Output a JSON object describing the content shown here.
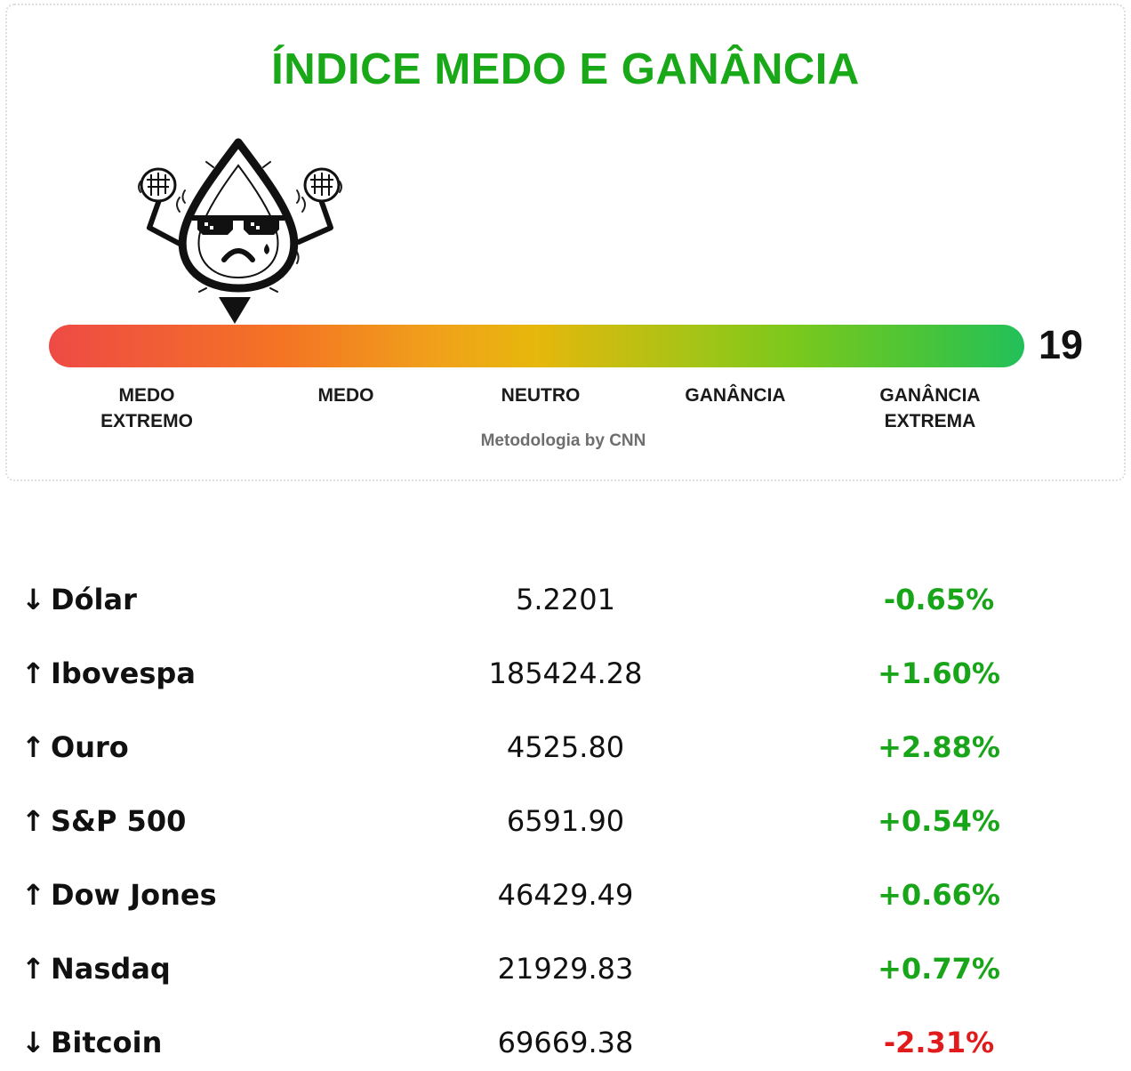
{
  "widget": {
    "title": "ÍNDICE MEDO E GANÂNCIA",
    "score": "19",
    "score_fraction": 0.19,
    "scale_labels": [
      {
        "line1": "MEDO",
        "line2": "EXTREMO"
      },
      {
        "line1": "MEDO",
        "line2": ""
      },
      {
        "line1": "NEUTRO",
        "line2": ""
      },
      {
        "line1": "GANÂNCIA",
        "line2": ""
      },
      {
        "line1": "GANÂNCIA",
        "line2": "EXTREMA"
      }
    ],
    "methodology": "Metodologia by CNN",
    "mascot_icon": "fear-drop-mascot-icon",
    "pointer_icon": "triangle-down-icon",
    "colors": {
      "title": "#18a818",
      "extreme_fear": "#ee4a45",
      "fear": "#f47424",
      "neutral": "#e6b70c",
      "greed": "#7cc81c",
      "extreme_greed": "#22c05a"
    }
  },
  "markets": [
    {
      "arrow": "↓",
      "name": "Dólar",
      "value": "5.2201",
      "change": "-0.65%",
      "change_color": "#19a519"
    },
    {
      "arrow": "↑",
      "name": "Ibovespa",
      "value": "185424.28",
      "change": "+1.60%",
      "change_color": "#19a519"
    },
    {
      "arrow": "↑",
      "name": "Ouro",
      "value": "4525.80",
      "change": "+2.88%",
      "change_color": "#19a519"
    },
    {
      "arrow": "↑",
      "name": "S&P 500",
      "value": "6591.90",
      "change": "+0.54%",
      "change_color": "#19a519"
    },
    {
      "arrow": "↑",
      "name": "Dow Jones",
      "value": "46429.49",
      "change": "+0.66%",
      "change_color": "#19a519"
    },
    {
      "arrow": "↑",
      "name": "Nasdaq",
      "value": "21929.83",
      "change": "+0.77%",
      "change_color": "#19a519"
    },
    {
      "arrow": "↓",
      "name": "Bitcoin",
      "value": "69669.38",
      "change": "-2.31%",
      "change_color": "#e11b1b"
    }
  ]
}
